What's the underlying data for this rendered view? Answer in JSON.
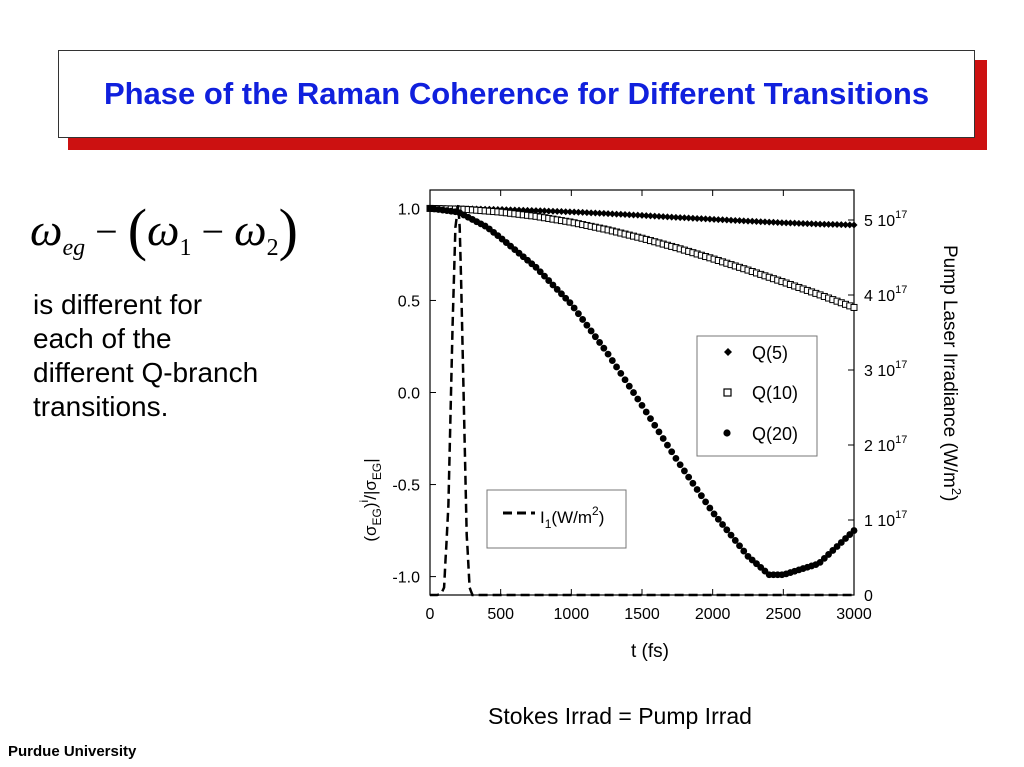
{
  "slide": {
    "title": "Phase of the Raman Coherence for Different Transitions",
    "formula": {
      "omega": "ω",
      "sub_eg": "eg",
      "minus": "−",
      "open_paren": "(",
      "close_paren": ")",
      "sub_1": "1",
      "sub_2": "2"
    },
    "body_text": "is different for each of the different Q-branch transitions.",
    "caption": "Stokes Irrad = Pump Irrad",
    "footer": "Purdue University"
  },
  "chart_data": {
    "type": "scatter",
    "xlabel": "t (fs)",
    "ylabel": "(σEG)i/|σEG|",
    "y2label": "Pump Laser Irradiance (W/m2)",
    "xlim": [
      0,
      3000
    ],
    "ylim": [
      -1.1,
      1.1
    ],
    "y2lim": [
      0,
      5.4
    ],
    "x_ticks": [
      "0",
      "500",
      "1000",
      "1500",
      "2000",
      "2500",
      "3000"
    ],
    "y_ticks": [
      "-1.0",
      "-0.5",
      "0.0",
      "0.5",
      "1.0"
    ],
    "y2_ticks": [
      "0",
      "1 10",
      "2 10",
      "3 10",
      "4 10",
      "5 10"
    ],
    "y2_tick_exponent": "17",
    "y2_tick_values": [
      0,
      1,
      2,
      3,
      4,
      5
    ],
    "series": [
      {
        "name": "Q(5)",
        "marker": "diamond",
        "x": [
          0,
          250,
          500,
          750,
          1000,
          1250,
          1500,
          1750,
          2000,
          2250,
          2500,
          2750,
          3000
        ],
        "y": [
          1.0,
          0.998,
          0.994,
          0.988,
          0.981,
          0.972,
          0.962,
          0.951,
          0.941,
          0.931,
          0.922,
          0.915,
          0.91
        ]
      },
      {
        "name": "Q(10)",
        "marker": "open-square",
        "x": [
          0,
          250,
          500,
          750,
          1000,
          1250,
          1500,
          1750,
          2000,
          2250,
          2500,
          2750,
          3000
        ],
        "y": [
          1.0,
          0.995,
          0.98,
          0.957,
          0.925,
          0.885,
          0.838,
          0.785,
          0.727,
          0.665,
          0.6,
          0.533,
          0.462
        ]
      },
      {
        "name": "Q(20)",
        "marker": "filled-circle",
        "x": [
          0,
          200,
          300,
          400,
          500,
          750,
          1000,
          1250,
          1500,
          1750,
          2000,
          2250,
          2400,
          2500,
          2750,
          3000
        ],
        "y": [
          1.0,
          0.98,
          0.94,
          0.9,
          0.84,
          0.68,
          0.48,
          0.22,
          -0.07,
          -0.37,
          -0.65,
          -0.89,
          -0.99,
          -0.99,
          -0.93,
          -0.75
        ]
      },
      {
        "name": "I1(W/m2)",
        "marker": "dashed-line",
        "axis": "right",
        "x": [
          0,
          50,
          80,
          100,
          130,
          160,
          180,
          200,
          210,
          220,
          240,
          260,
          280,
          300,
          350,
          500,
          1000,
          2000,
          3000
        ],
        "y": [
          0,
          0,
          0.02,
          0.1,
          1.2,
          3.6,
          4.9,
          5.2,
          4.9,
          4.2,
          2.5,
          0.8,
          0.1,
          0,
          0,
          0,
          0,
          0,
          0
        ]
      }
    ],
    "legend_labels": {
      "q5": "Q(5)",
      "q10": "Q(10)",
      "q20": "Q(20)",
      "i1_prefix": "I",
      "i1_sub": "1",
      "i1_unit": "(W/m",
      "i1_sup": "2",
      "i1_close": ")"
    },
    "legend": "right",
    "grid": false
  }
}
